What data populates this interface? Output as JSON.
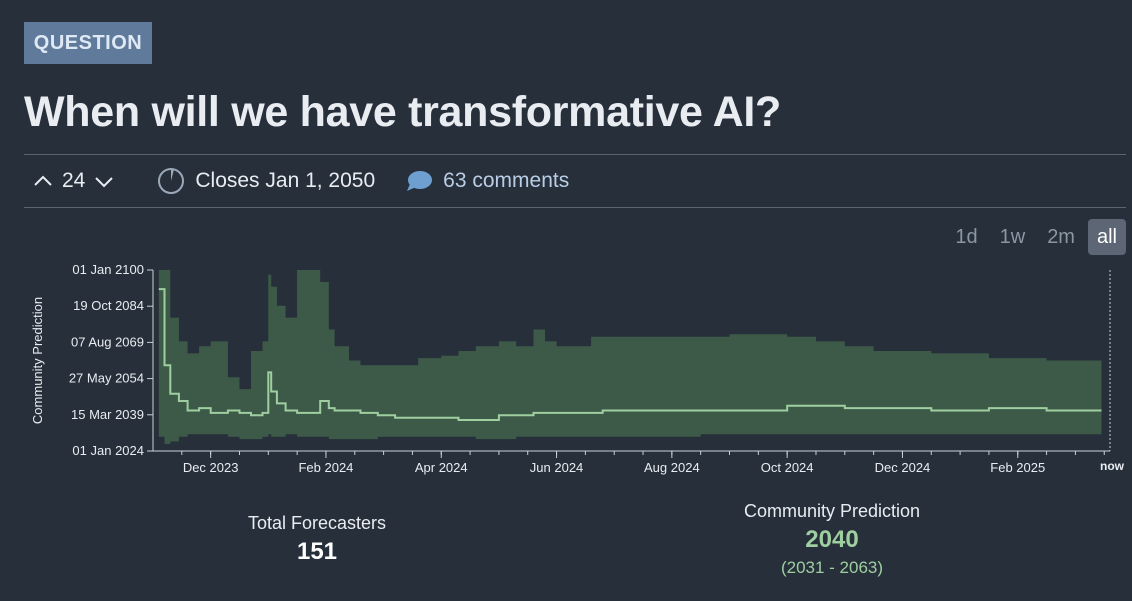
{
  "badge": "QUESTION",
  "title": "When will we have transformative AI?",
  "votes": "24",
  "closes": "Closes Jan 1, 2050",
  "comments": "63 comments",
  "time_ranges": [
    "1d",
    "1w",
    "2m",
    "all"
  ],
  "active_range": "all",
  "stats": {
    "forecasters_label": "Total Forecasters",
    "forecasters_value": "151",
    "prediction_label": "Community Prediction",
    "prediction_value": "2040",
    "prediction_range": "(2031 - 2063)"
  },
  "chart_data": {
    "type": "area",
    "ylabel": "Community Prediction",
    "y_ticks": [
      "01 Jan 2100",
      "19 Oct 2084",
      "07 Aug 2069",
      "27 May 2054",
      "15 Mar 2039",
      "01 Jan 2024"
    ],
    "y_range": [
      2024,
      2100
    ],
    "x_ticks": [
      "Dec 2023",
      "Feb 2024",
      "Apr 2024",
      "Jun 2024",
      "Aug 2024",
      "Oct 2024",
      "Dec 2024",
      "Feb 2025",
      "now"
    ],
    "x_range_months": [
      0,
      16.6
    ],
    "x_unit": "months since Nov 2023",
    "colors": {
      "band": "#3d5a48",
      "median": "#9fcfa0"
    },
    "series": [
      {
        "x": [
          0.1,
          0.2,
          0.3,
          0.45,
          0.6,
          0.8,
          1.0,
          1.3,
          1.5,
          1.7,
          1.9,
          2.0,
          2.05,
          2.15,
          2.3,
          2.5,
          2.7,
          2.9,
          3.05,
          3.15,
          3.4,
          3.6,
          3.9,
          4.2,
          4.6,
          5.0,
          5.3,
          5.6,
          6.0,
          6.3,
          6.6,
          6.8,
          7.0,
          7.4,
          7.6,
          7.8,
          8.0,
          8.4,
          8.9,
          9.5,
          10.0,
          10.5,
          11.0,
          11.5,
          12.0,
          12.5,
          13.0,
          13.5,
          14.0,
          14.5,
          15.0,
          15.5,
          16.0,
          16.4
        ],
        "median": [
          2092,
          2060,
          2048,
          2045,
          2041,
          2042,
          2040,
          2041,
          2040,
          2039,
          2040,
          2057,
          2049,
          2044,
          2041,
          2040,
          2040,
          2045,
          2042,
          2041,
          2041,
          2040,
          2039,
          2038,
          2038,
          2038,
          2037,
          2037,
          2039,
          2039,
          2040,
          2040,
          2040,
          2040,
          2040,
          2041,
          2041,
          2041,
          2041,
          2041,
          2041,
          2041,
          2043,
          2043,
          2042,
          2042,
          2042,
          2041,
          2041,
          2042,
          2042,
          2041,
          2041,
          2041
        ],
        "upper": [
          2100,
          2100,
          2080,
          2070,
          2065,
          2068,
          2070,
          2055,
          2050,
          2066,
          2070,
          2098,
          2093,
          2085,
          2080,
          2100,
          2100,
          2095,
          2075,
          2068,
          2062,
          2060,
          2060,
          2060,
          2063,
          2064,
          2066,
          2068,
          2070,
          2068,
          2075,
          2070,
          2068,
          2068,
          2072,
          2072,
          2072,
          2072,
          2072,
          2072,
          2073,
          2073,
          2072,
          2070,
          2068,
          2066,
          2066,
          2065,
          2065,
          2063,
          2063,
          2062,
          2062,
          2062
        ],
        "lower": [
          2030,
          2027,
          2028,
          2030,
          2031,
          2031,
          2031,
          2030,
          2029,
          2029,
          2030,
          2031,
          2030,
          2030,
          2031,
          2030,
          2030,
          2030,
          2029,
          2029,
          2029,
          2029,
          2030,
          2030,
          2030,
          2030,
          2030,
          2029,
          2029,
          2030,
          2030,
          2030,
          2030,
          2030,
          2030,
          2030,
          2030,
          2030,
          2030,
          2031,
          2031,
          2031,
          2031,
          2031,
          2031,
          2031,
          2031,
          2031,
          2031,
          2031,
          2031,
          2031,
          2031,
          2031
        ]
      }
    ]
  }
}
